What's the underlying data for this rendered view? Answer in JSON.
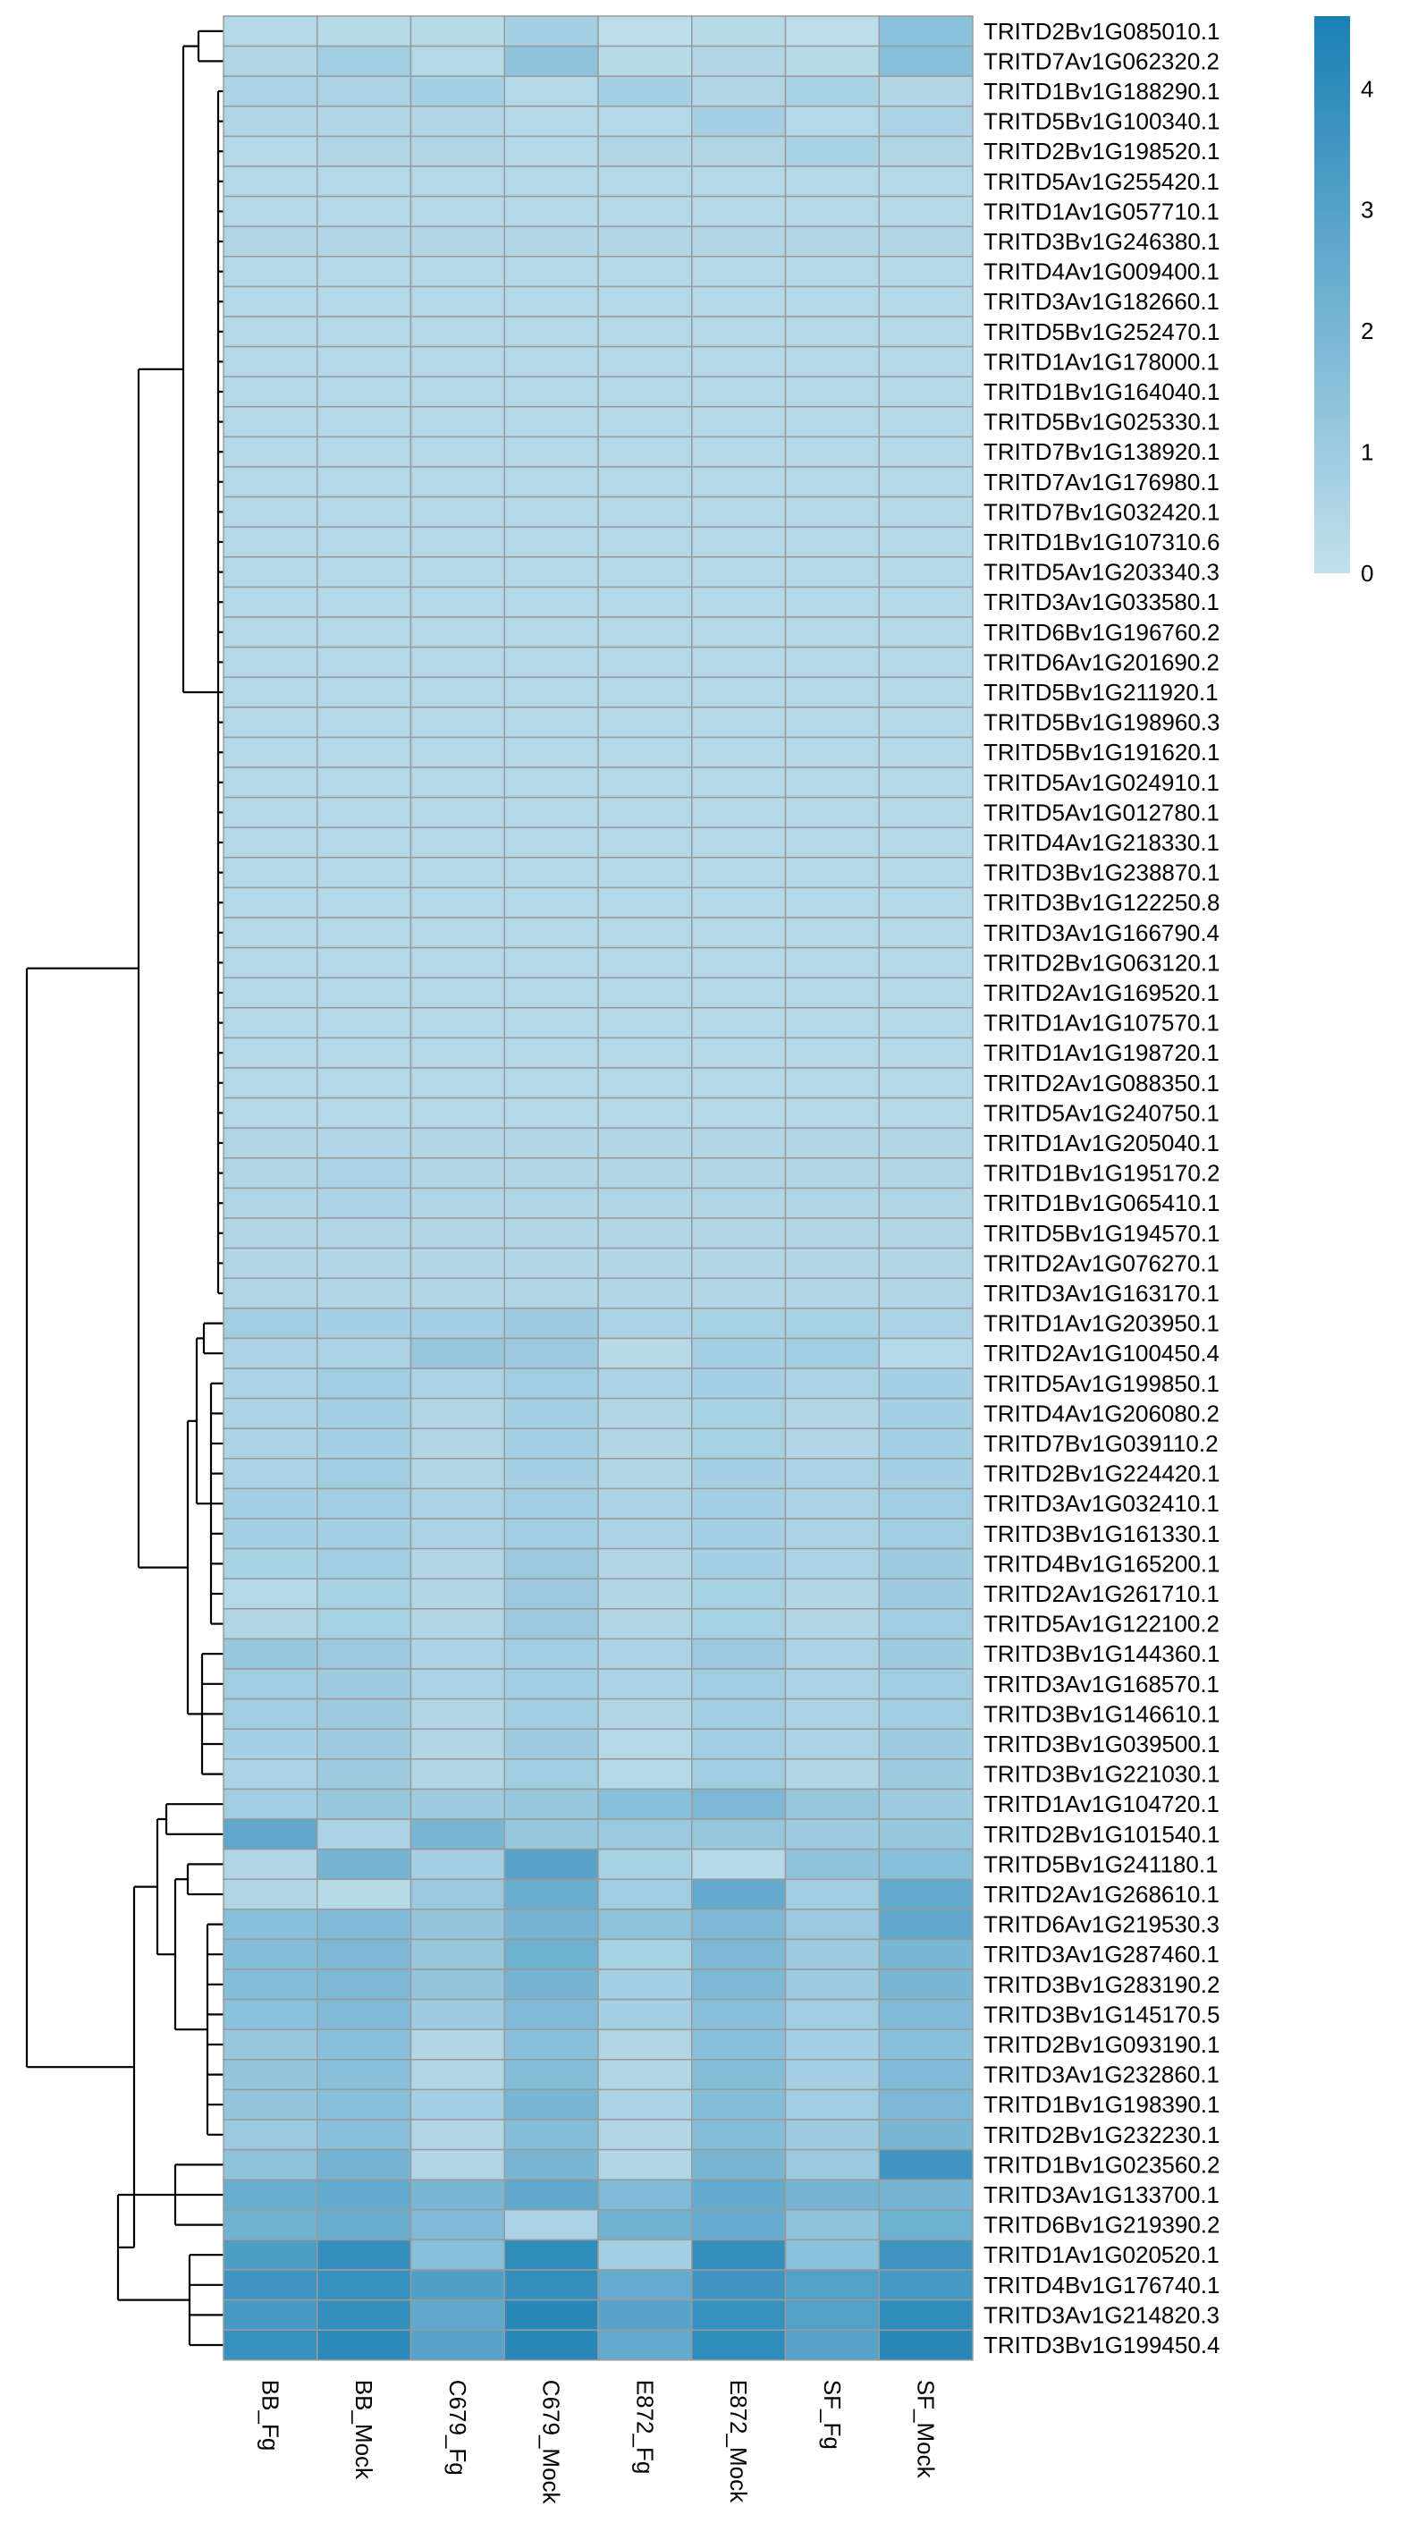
{
  "chart_data": {
    "type": "heatmap",
    "columns": [
      "BB_Fg",
      "BB_Mock",
      "C679_Fg",
      "C679_Mock",
      "E872_Fg",
      "E872_Mock",
      "SF_Fg",
      "SF_Mock"
    ],
    "rows": [
      "TRITD2Bv1G085010.1",
      "TRITD7Av1G062320.2",
      "TRITD1Bv1G188290.1",
      "TRITD5Bv1G100340.1",
      "TRITD2Bv1G198520.1",
      "TRITD5Av1G255420.1",
      "TRITD1Av1G057710.1",
      "TRITD3Bv1G246380.1",
      "TRITD4Av1G009400.1",
      "TRITD3Av1G182660.1",
      "TRITD5Bv1G252470.1",
      "TRITD1Av1G178000.1",
      "TRITD1Bv1G164040.1",
      "TRITD5Bv1G025330.1",
      "TRITD7Bv1G138920.1",
      "TRITD7Av1G176980.1",
      "TRITD7Bv1G032420.1",
      "TRITD1Bv1G107310.6",
      "TRITD5Av1G203340.3",
      "TRITD3Av1G033580.1",
      "TRITD6Bv1G196760.2",
      "TRITD6Av1G201690.2",
      "TRITD5Bv1G211920.1",
      "TRITD5Bv1G198960.3",
      "TRITD5Bv1G191620.1",
      "TRITD5Av1G024910.1",
      "TRITD5Av1G012780.1",
      "TRITD4Av1G218330.1",
      "TRITD3Bv1G238870.1",
      "TRITD3Bv1G122250.8",
      "TRITD3Av1G166790.4",
      "TRITD2Bv1G063120.1",
      "TRITD2Av1G169520.1",
      "TRITD1Av1G107570.1",
      "TRITD1Av1G198720.1",
      "TRITD2Av1G088350.1",
      "TRITD5Av1G240750.1",
      "TRITD1Av1G205040.1",
      "TRITD1Bv1G195170.2",
      "TRITD1Bv1G065410.1",
      "TRITD5Bv1G194570.1",
      "TRITD2Av1G076270.1",
      "TRITD3Av1G163170.1",
      "TRITD1Av1G203950.1",
      "TRITD2Av1G100450.4",
      "TRITD5Av1G199850.1",
      "TRITD4Av1G206080.2",
      "TRITD7Bv1G039110.2",
      "TRITD2Bv1G224420.1",
      "TRITD3Av1G032410.1",
      "TRITD3Bv1G161330.1",
      "TRITD4Bv1G165200.1",
      "TRITD2Av1G261710.1",
      "TRITD5Av1G122100.2",
      "TRITD3Bv1G144360.1",
      "TRITD3Av1G168570.1",
      "TRITD3Bv1G146610.1",
      "TRITD3Bv1G039500.1",
      "TRITD3Bv1G221030.1",
      "TRITD1Av1G104720.1",
      "TRITD2Bv1G101540.1",
      "TRITD5Bv1G241180.1",
      "TRITD2Av1G268610.1",
      "TRITD6Av1G219530.3",
      "TRITD3Av1G287460.1",
      "TRITD3Bv1G283190.2",
      "TRITD3Bv1G145170.5",
      "TRITD2Bv1G093190.1",
      "TRITD3Av1G232860.1",
      "TRITD1Bv1G198390.1",
      "TRITD2Bv1G232230.1",
      "TRITD1Bv1G023560.2",
      "TRITD3Av1G133700.1",
      "TRITD6Bv1G219390.2",
      "TRITD1Av1G020520.1",
      "TRITD4Bv1G176740.1",
      "TRITD3Av1G214820.3",
      "TRITD3Bv1G199450.4"
    ],
    "values": [
      [
        0.4,
        0.3,
        0.3,
        0.8,
        0.2,
        0.3,
        0.2,
        1.5
      ],
      [
        0.5,
        0.9,
        0.4,
        1.4,
        0.3,
        0.5,
        0.3,
        1.6
      ],
      [
        0.6,
        0.6,
        0.8,
        0.4,
        0.8,
        0.5,
        0.7,
        0.5
      ],
      [
        0.5,
        0.5,
        0.5,
        0.4,
        0.4,
        0.8,
        0.4,
        0.6
      ],
      [
        0.4,
        0.5,
        0.5,
        0.4,
        0.5,
        0.5,
        0.7,
        0.5
      ],
      [
        0.4,
        0.4,
        0.4,
        0.4,
        0.4,
        0.4,
        0.4,
        0.4
      ],
      [
        0.4,
        0.4,
        0.4,
        0.4,
        0.4,
        0.4,
        0.4,
        0.4
      ],
      [
        0.5,
        0.5,
        0.5,
        0.5,
        0.5,
        0.5,
        0.5,
        0.5
      ],
      [
        0.4,
        0.4,
        0.4,
        0.4,
        0.4,
        0.4,
        0.4,
        0.4
      ],
      [
        0.4,
        0.4,
        0.4,
        0.4,
        0.4,
        0.4,
        0.4,
        0.4
      ],
      [
        0.4,
        0.4,
        0.4,
        0.4,
        0.4,
        0.4,
        0.4,
        0.4
      ],
      [
        0.4,
        0.4,
        0.4,
        0.4,
        0.4,
        0.4,
        0.4,
        0.4
      ],
      [
        0.4,
        0.4,
        0.4,
        0.4,
        0.4,
        0.4,
        0.4,
        0.4
      ],
      [
        0.4,
        0.4,
        0.4,
        0.4,
        0.4,
        0.4,
        0.4,
        0.4
      ],
      [
        0.4,
        0.4,
        0.4,
        0.4,
        0.4,
        0.4,
        0.4,
        0.4
      ],
      [
        0.4,
        0.4,
        0.4,
        0.4,
        0.4,
        0.4,
        0.4,
        0.4
      ],
      [
        0.4,
        0.4,
        0.4,
        0.4,
        0.4,
        0.4,
        0.4,
        0.4
      ],
      [
        0.4,
        0.4,
        0.4,
        0.4,
        0.4,
        0.4,
        0.4,
        0.4
      ],
      [
        0.4,
        0.4,
        0.4,
        0.4,
        0.4,
        0.4,
        0.4,
        0.4
      ],
      [
        0.4,
        0.4,
        0.4,
        0.4,
        0.4,
        0.4,
        0.4,
        0.4
      ],
      [
        0.4,
        0.4,
        0.4,
        0.4,
        0.4,
        0.4,
        0.4,
        0.4
      ],
      [
        0.4,
        0.4,
        0.4,
        0.4,
        0.4,
        0.4,
        0.4,
        0.4
      ],
      [
        0.4,
        0.4,
        0.4,
        0.4,
        0.4,
        0.4,
        0.4,
        0.4
      ],
      [
        0.4,
        0.4,
        0.4,
        0.4,
        0.4,
        0.4,
        0.4,
        0.4
      ],
      [
        0.4,
        0.4,
        0.4,
        0.4,
        0.4,
        0.4,
        0.4,
        0.4
      ],
      [
        0.4,
        0.4,
        0.4,
        0.4,
        0.4,
        0.4,
        0.4,
        0.4
      ],
      [
        0.4,
        0.4,
        0.4,
        0.4,
        0.4,
        0.4,
        0.4,
        0.4
      ],
      [
        0.4,
        0.4,
        0.4,
        0.4,
        0.4,
        0.4,
        0.4,
        0.4
      ],
      [
        0.4,
        0.4,
        0.4,
        0.4,
        0.4,
        0.4,
        0.4,
        0.4
      ],
      [
        0.4,
        0.4,
        0.4,
        0.4,
        0.4,
        0.4,
        0.4,
        0.4
      ],
      [
        0.4,
        0.4,
        0.4,
        0.4,
        0.4,
        0.4,
        0.4,
        0.4
      ],
      [
        0.4,
        0.4,
        0.4,
        0.4,
        0.4,
        0.4,
        0.4,
        0.4
      ],
      [
        0.4,
        0.4,
        0.4,
        0.4,
        0.4,
        0.4,
        0.4,
        0.4
      ],
      [
        0.4,
        0.4,
        0.4,
        0.4,
        0.4,
        0.4,
        0.4,
        0.4
      ],
      [
        0.4,
        0.4,
        0.4,
        0.4,
        0.4,
        0.4,
        0.4,
        0.4
      ],
      [
        0.4,
        0.4,
        0.4,
        0.4,
        0.4,
        0.4,
        0.4,
        0.4
      ],
      [
        0.4,
        0.4,
        0.4,
        0.4,
        0.4,
        0.4,
        0.4,
        0.4
      ],
      [
        0.5,
        0.5,
        0.5,
        0.5,
        0.5,
        0.5,
        0.5,
        0.5
      ],
      [
        0.5,
        0.6,
        0.5,
        0.5,
        0.5,
        0.5,
        0.5,
        0.5
      ],
      [
        0.5,
        0.6,
        0.5,
        0.5,
        0.5,
        0.5,
        0.5,
        0.5
      ],
      [
        0.5,
        0.5,
        0.5,
        0.5,
        0.5,
        0.5,
        0.5,
        0.5
      ],
      [
        0.5,
        0.5,
        0.5,
        0.5,
        0.5,
        0.5,
        0.5,
        0.5
      ],
      [
        0.5,
        0.5,
        0.5,
        0.5,
        0.5,
        0.5,
        0.5,
        0.5
      ],
      [
        0.9,
        0.8,
        0.8,
        1.0,
        0.6,
        0.7,
        0.7,
        0.6
      ],
      [
        0.6,
        0.6,
        1.2,
        1.1,
        0.3,
        0.8,
        0.9,
        0.4
      ],
      [
        0.6,
        0.9,
        0.6,
        0.9,
        0.6,
        0.8,
        0.6,
        0.8
      ],
      [
        0.6,
        0.8,
        0.5,
        0.8,
        0.5,
        0.7,
        0.5,
        0.8
      ],
      [
        0.6,
        0.8,
        0.5,
        0.8,
        0.5,
        0.7,
        0.5,
        0.8
      ],
      [
        0.6,
        0.9,
        0.5,
        0.8,
        0.5,
        0.8,
        0.6,
        0.8
      ],
      [
        0.8,
        0.9,
        0.6,
        0.9,
        0.6,
        0.8,
        0.6,
        0.9
      ],
      [
        0.8,
        0.8,
        0.6,
        0.9,
        0.6,
        0.8,
        0.6,
        0.9
      ],
      [
        0.7,
        0.9,
        0.5,
        1.1,
        0.5,
        0.8,
        0.6,
        1.0
      ],
      [
        0.4,
        0.7,
        0.5,
        1.1,
        0.5,
        0.7,
        0.5,
        1.0
      ],
      [
        0.5,
        0.7,
        0.5,
        1.1,
        0.5,
        0.7,
        0.5,
        0.9
      ],
      [
        1.2,
        1.1,
        0.6,
        0.9,
        0.6,
        1.1,
        0.6,
        1.0
      ],
      [
        0.9,
        1.0,
        0.6,
        0.9,
        0.6,
        0.9,
        0.6,
        0.9
      ],
      [
        0.9,
        1.0,
        0.5,
        0.9,
        0.5,
        0.9,
        0.6,
        0.9
      ],
      [
        0.8,
        1.0,
        0.5,
        1.0,
        0.4,
        0.9,
        0.6,
        1.0
      ],
      [
        0.6,
        1.0,
        0.5,
        0.9,
        0.4,
        0.9,
        0.5,
        1.0
      ],
      [
        0.9,
        1.2,
        1.0,
        1.2,
        1.6,
        1.9,
        1.2,
        1.0
      ],
      [
        2.7,
        0.6,
        2.0,
        1.2,
        1.1,
        1.2,
        1.0,
        1.2
      ],
      [
        0.5,
        2.1,
        0.8,
        2.9,
        0.7,
        0.4,
        1.4,
        1.6
      ],
      [
        0.5,
        0.3,
        1.1,
        2.4,
        0.9,
        2.6,
        0.9,
        2.6
      ],
      [
        1.6,
        1.8,
        1.3,
        2.1,
        1.4,
        1.9,
        1.1,
        2.7
      ],
      [
        1.7,
        1.9,
        1.2,
        2.3,
        0.7,
        1.9,
        1.0,
        2.0
      ],
      [
        1.7,
        1.9,
        1.3,
        2.1,
        0.8,
        1.9,
        1.0,
        2.0
      ],
      [
        1.5,
        1.8,
        1.0,
        1.8,
        0.8,
        1.6,
        0.9,
        1.8
      ],
      [
        1.2,
        1.6,
        0.5,
        1.6,
        0.5,
        1.6,
        0.8,
        1.6
      ],
      [
        1.3,
        1.6,
        0.5,
        1.7,
        0.5,
        1.7,
        0.8,
        1.8
      ],
      [
        1.3,
        1.6,
        0.8,
        2.0,
        0.6,
        1.7,
        0.9,
        1.9
      ],
      [
        1.1,
        1.6,
        0.5,
        1.7,
        0.5,
        1.7,
        1.0,
        2.0
      ],
      [
        1.4,
        2.1,
        0.5,
        2.0,
        0.5,
        2.0,
        1.1,
        3.6
      ],
      [
        2.4,
        2.6,
        2.0,
        2.7,
        1.8,
        2.6,
        2.1,
        2.1
      ],
      [
        2.2,
        2.4,
        1.8,
        0.6,
        2.2,
        2.5,
        1.4,
        2.3
      ],
      [
        3.2,
        3.9,
        1.6,
        4.0,
        0.8,
        3.9,
        1.5,
        3.6
      ],
      [
        3.6,
        3.8,
        3.1,
        3.9,
        2.5,
        3.6,
        3.0,
        3.4
      ],
      [
        3.4,
        3.9,
        2.7,
        4.2,
        2.9,
        3.8,
        3.0,
        4.0
      ],
      [
        3.8,
        4.1,
        2.9,
        4.2,
        2.6,
        4.0,
        2.9,
        4.2
      ]
    ],
    "colorbar": {
      "ticks": [
        0,
        1,
        2,
        3,
        4
      ],
      "min": 0,
      "max": 4.6
    },
    "colors": {
      "low": "#c2e0ec",
      "high": "#1a80b4",
      "cell_border": "#9a9a9a",
      "dendrogram": "#000000"
    },
    "row_dendrogram": true,
    "legend": "right"
  }
}
